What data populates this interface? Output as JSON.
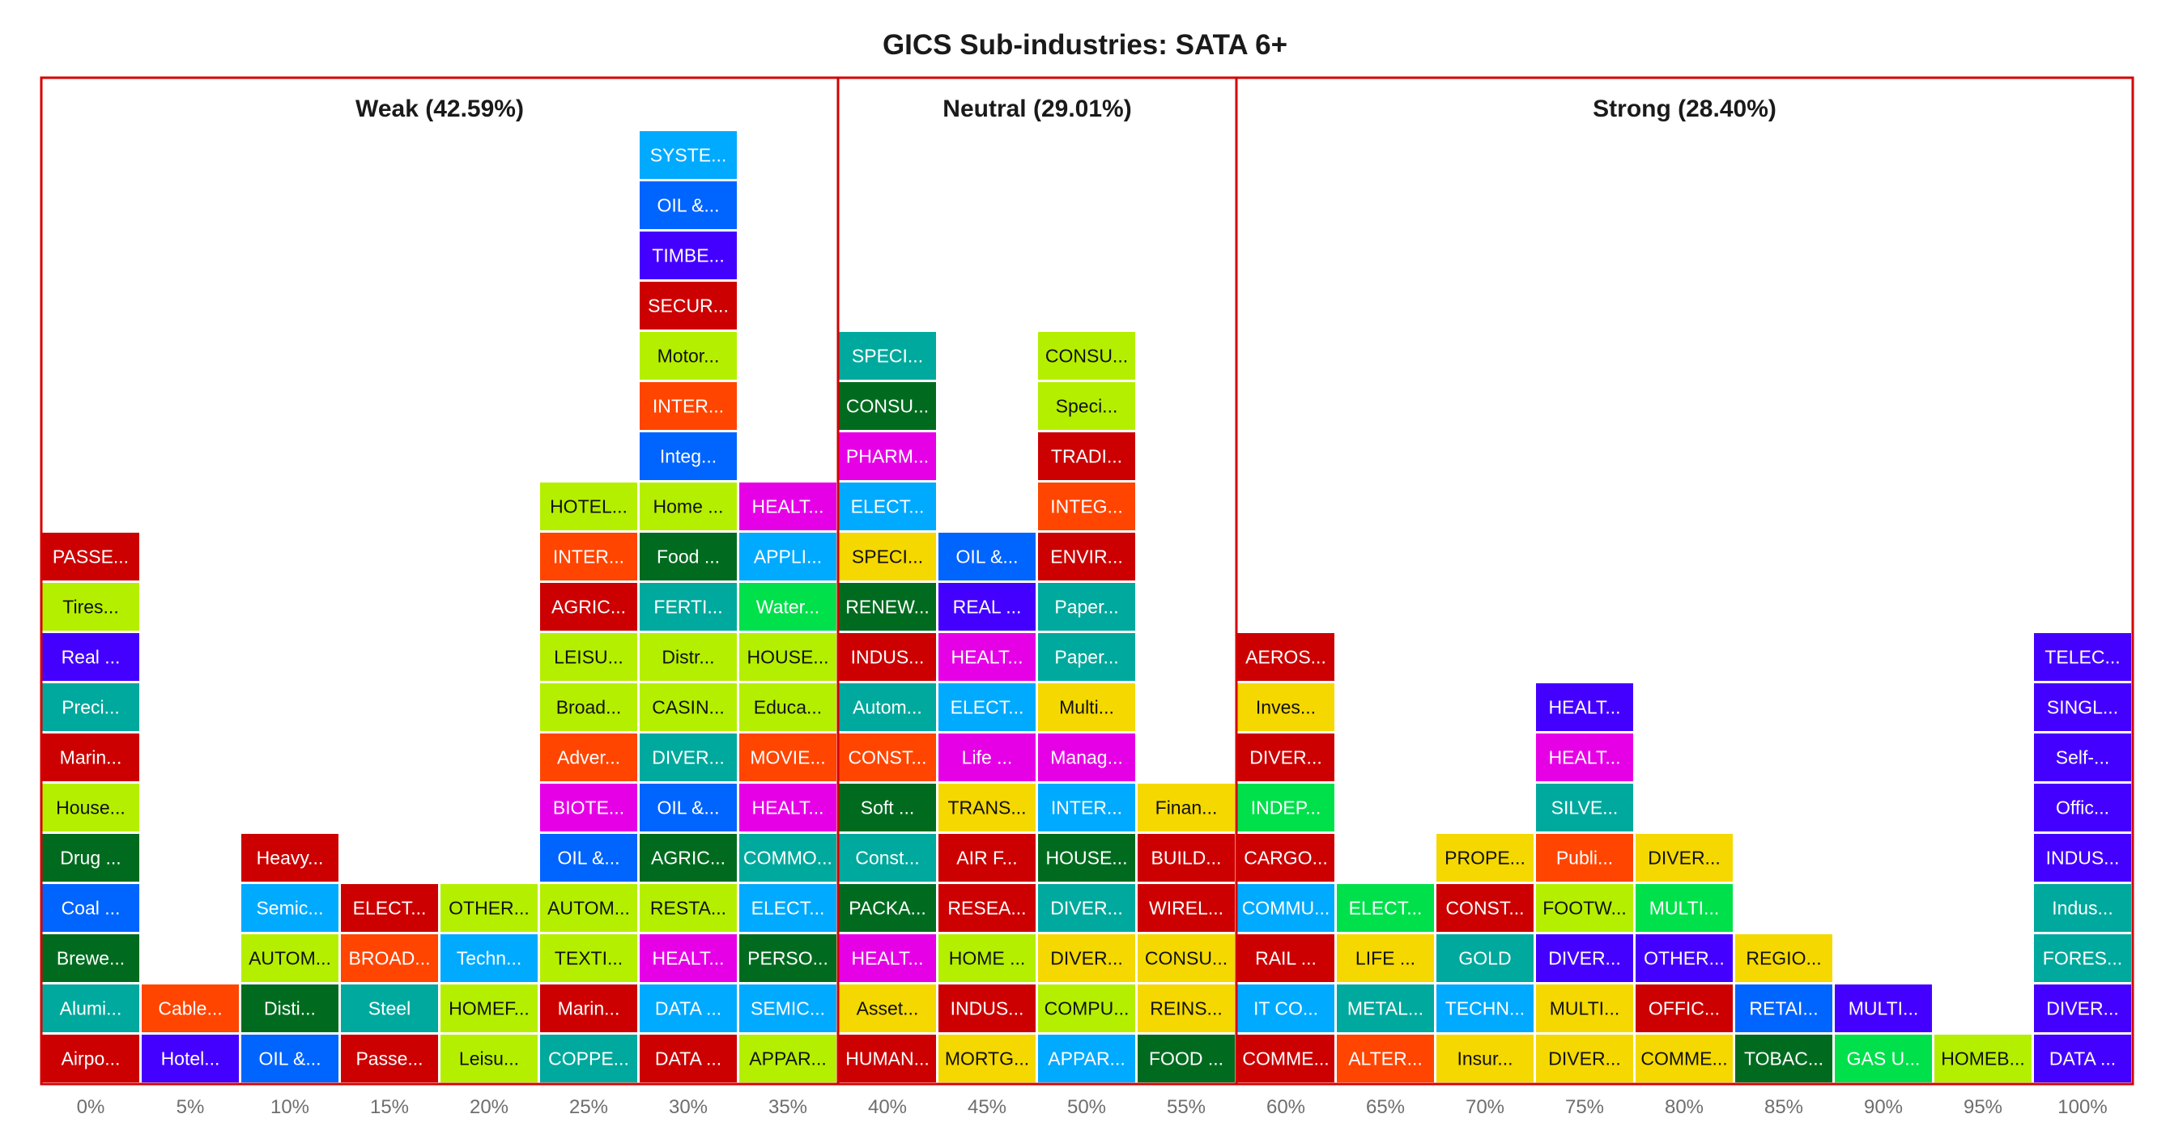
{
  "chart_data": {
    "type": "table",
    "title": "GICS Sub-industries: SATA 6+",
    "ticks": [
      "0%",
      "5%",
      "10%",
      "15%",
      "20%",
      "25%",
      "30%",
      "35%",
      "40%",
      "45%",
      "50%",
      "55%",
      "60%",
      "65%",
      "70%",
      "75%",
      "80%",
      "85%",
      "90%",
      "95%",
      "100%"
    ],
    "sections": [
      {
        "label": "Weak (42.59%)",
        "from": 0,
        "to": 7
      },
      {
        "label": "Neutral (29.01%)",
        "from": 8,
        "to": 11
      },
      {
        "label": "Strong (28.40%)",
        "from": 12,
        "to": 20
      }
    ],
    "columns": [
      [
        [
          "Airpo...",
          "#cc0000"
        ],
        [
          "Alumi...",
          "#00a99d"
        ],
        [
          "Brewe...",
          "#006b1f"
        ],
        [
          "Coal ...",
          "#0064ff"
        ],
        [
          "Drug ...",
          "#006b1f"
        ],
        [
          "House...",
          "#b5ef00"
        ],
        [
          "Marin...",
          "#cc0000"
        ],
        [
          "Preci...",
          "#00a99d"
        ],
        [
          "Real ...",
          "#4400ff"
        ],
        [
          "Tires...",
          "#b5ef00"
        ],
        [
          "PASSE...",
          "#cc0000"
        ]
      ],
      [
        [
          "Hotel...",
          "#4400ff"
        ],
        [
          "Cable...",
          "#ff4500"
        ]
      ],
      [
        [
          "OIL &...",
          "#0064ff"
        ],
        [
          "Disti...",
          "#006b1f"
        ],
        [
          "AUTOM...",
          "#b5ef00"
        ],
        [
          "Semic...",
          "#00aaff"
        ],
        [
          "Heavy...",
          "#cc0000"
        ]
      ],
      [
        [
          "Passe...",
          "#cc0000"
        ],
        [
          "Steel",
          "#00a99d"
        ],
        [
          "BROAD...",
          "#ff4500"
        ],
        [
          "ELECT...",
          "#cc0000"
        ]
      ],
      [
        [
          "Leisu...",
          "#b5ef00"
        ],
        [
          "HOMEF...",
          "#b5ef00"
        ],
        [
          "Techn...",
          "#00aaff"
        ],
        [
          "OTHER...",
          "#b5ef00"
        ]
      ],
      [
        [
          "COPPE...",
          "#00a99d"
        ],
        [
          "Marin...",
          "#cc0000"
        ],
        [
          "TEXTI...",
          "#b5ef00"
        ],
        [
          "AUTOM...",
          "#b5ef00"
        ],
        [
          "OIL &...",
          "#0064ff"
        ],
        [
          "BIOTE...",
          "#e600e6"
        ],
        [
          "Adver...",
          "#ff4500"
        ],
        [
          "Broad...",
          "#b5ef00"
        ],
        [
          "LEISU...",
          "#b5ef00"
        ],
        [
          "AGRIC...",
          "#cc0000"
        ],
        [
          "INTER...",
          "#ff4500"
        ],
        [
          "HOTEL...",
          "#b5ef00"
        ]
      ],
      [
        [
          "DATA ...",
          "#cc0000"
        ],
        [
          "DATA ...",
          "#00aaff"
        ],
        [
          "HEALT...",
          "#e600e6"
        ],
        [
          "RESTA...",
          "#b5ef00"
        ],
        [
          "AGRIC...",
          "#006b1f"
        ],
        [
          "OIL &...",
          "#0064ff"
        ],
        [
          "DIVER...",
          "#00a99d"
        ],
        [
          "CASIN...",
          "#b5ef00"
        ],
        [
          "Distr...",
          "#b5ef00"
        ],
        [
          "FERTI...",
          "#00a99d"
        ],
        [
          "Food ...",
          "#006b1f"
        ],
        [
          "Home ...",
          "#b5ef00"
        ],
        [
          "Integ...",
          "#0064ff"
        ],
        [
          "INTER...",
          "#ff4500"
        ],
        [
          "Motor...",
          "#b5ef00"
        ],
        [
          "SECUR...",
          "#cc0000"
        ],
        [
          "TIMBE...",
          "#4400ff"
        ],
        [
          "OIL &...",
          "#0064ff"
        ],
        [
          "SYSTE...",
          "#00aaff"
        ]
      ],
      [
        [
          "APPAR...",
          "#b5ef00"
        ],
        [
          "SEMIC...",
          "#00aaff"
        ],
        [
          "PERSO...",
          "#006b1f"
        ],
        [
          "ELECT...",
          "#00aaff"
        ],
        [
          "COMMO...",
          "#00a99d"
        ],
        [
          "HEALT...",
          "#e600e6"
        ],
        [
          "MOVIE...",
          "#ff4500"
        ],
        [
          "Educa...",
          "#b5ef00"
        ],
        [
          "HOUSE...",
          "#b5ef00"
        ],
        [
          "Water...",
          "#00e04b"
        ],
        [
          "APPLI...",
          "#00aaff"
        ],
        [
          "HEALT...",
          "#e600e6"
        ]
      ],
      [
        [
          "HUMAN...",
          "#cc0000"
        ],
        [
          "Asset...",
          "#f5d800"
        ],
        [
          "HEALT...",
          "#e600e6"
        ],
        [
          "PACKA...",
          "#006b1f"
        ],
        [
          "Const...",
          "#00a99d"
        ],
        [
          "Soft ...",
          "#006b1f"
        ],
        [
          "CONST...",
          "#ff4500"
        ],
        [
          "Autom...",
          "#00a99d"
        ],
        [
          "INDUS...",
          "#cc0000"
        ],
        [
          "RENEW...",
          "#006b1f"
        ],
        [
          "SPECI...",
          "#f5d800"
        ],
        [
          "ELECT...",
          "#00aaff"
        ],
        [
          "PHARM...",
          "#e600e6"
        ],
        [
          "CONSU...",
          "#006b1f"
        ],
        [
          "SPECI...",
          "#00a99d"
        ]
      ],
      [
        [
          "MORTG...",
          "#f5d800"
        ],
        [
          "INDUS...",
          "#cc0000"
        ],
        [
          "HOME ...",
          "#b5ef00"
        ],
        [
          "RESEA...",
          "#cc0000"
        ],
        [
          "AIR F...",
          "#cc0000"
        ],
        [
          "TRANS...",
          "#f5d800"
        ],
        [
          "Life ...",
          "#e600e6"
        ],
        [
          "ELECT...",
          "#00aaff"
        ],
        [
          "HEALT...",
          "#e600e6"
        ],
        [
          "REAL ...",
          "#4400ff"
        ],
        [
          "OIL &...",
          "#0064ff"
        ]
      ],
      [
        [
          "APPAR...",
          "#00aaff"
        ],
        [
          "COMPU...",
          "#b5ef00"
        ],
        [
          "DIVER...",
          "#f5d800"
        ],
        [
          "DIVER...",
          "#00a99d"
        ],
        [
          "HOUSE...",
          "#006b1f"
        ],
        [
          "INTER...",
          "#00aaff"
        ],
        [
          "Manag...",
          "#e600e6"
        ],
        [
          "Multi...",
          "#f5d800"
        ],
        [
          "Paper...",
          "#00a99d"
        ],
        [
          "Paper...",
          "#00a99d"
        ],
        [
          "ENVIR...",
          "#cc0000"
        ],
        [
          "INTEG...",
          "#ff4500"
        ],
        [
          "TRADI...",
          "#cc0000"
        ],
        [
          "Speci...",
          "#b5ef00"
        ],
        [
          "CONSU...",
          "#b5ef00"
        ]
      ],
      [
        [
          "FOOD ...",
          "#006b1f"
        ],
        [
          "REINS...",
          "#f5d800"
        ],
        [
          "CONSU...",
          "#f5d800"
        ],
        [
          "WIREL...",
          "#cc0000"
        ],
        [
          "BUILD...",
          "#cc0000"
        ],
        [
          "Finan...",
          "#f5d800"
        ]
      ],
      [
        [
          "COMME...",
          "#cc0000"
        ],
        [
          "IT CO...",
          "#00aaff"
        ],
        [
          "RAIL ...",
          "#cc0000"
        ],
        [
          "COMMU...",
          "#00aaff"
        ],
        [
          "CARGO...",
          "#cc0000"
        ],
        [
          "INDEP...",
          "#00e04b"
        ],
        [
          "DIVER...",
          "#cc0000"
        ],
        [
          "Inves...",
          "#f5d800"
        ],
        [
          "AEROS...",
          "#cc0000"
        ]
      ],
      [
        [
          "ALTER...",
          "#ff4500"
        ],
        [
          "METAL...",
          "#00a99d"
        ],
        [
          "LIFE ...",
          "#f5d800"
        ],
        [
          "ELECT...",
          "#00e04b"
        ]
      ],
      [
        [
          "Insur...",
          "#f5d800"
        ],
        [
          "TECHN...",
          "#00aaff"
        ],
        [
          "GOLD",
          "#00a99d"
        ],
        [
          "CONST...",
          "#cc0000"
        ],
        [
          "PROPE...",
          "#f5d800"
        ]
      ],
      [
        [
          "DIVER...",
          "#f5d800"
        ],
        [
          "MULTI...",
          "#f5d800"
        ],
        [
          "DIVER...",
          "#4400ff"
        ],
        [
          "FOOTW...",
          "#b5ef00"
        ],
        [
          "Publi...",
          "#ff4500"
        ],
        [
          "SILVE...",
          "#00a99d"
        ],
        [
          "HEALT...",
          "#e600e6"
        ],
        [
          "HEALT...",
          "#4400ff"
        ]
      ],
      [
        [
          "COMME...",
          "#f5d800"
        ],
        [
          "OFFIC...",
          "#cc0000"
        ],
        [
          "OTHER...",
          "#4400ff"
        ],
        [
          "MULTI...",
          "#00e04b"
        ],
        [
          "DIVER...",
          "#f5d800"
        ]
      ],
      [
        [
          "TOBAC...",
          "#006b1f"
        ],
        [
          "RETAI...",
          "#0064ff"
        ],
        [
          "REGIO...",
          "#f5d800"
        ]
      ],
      [
        [
          "GAS U...",
          "#00e04b"
        ],
        [
          "MULTI...",
          "#4400ff"
        ]
      ],
      [
        [
          "HOMEB...",
          "#b5ef00"
        ]
      ],
      [
        [
          "DATA ...",
          "#4400ff"
        ],
        [
          "DIVER...",
          "#4400ff"
        ],
        [
          "FORES...",
          "#00a99d"
        ],
        [
          "Indus...",
          "#00a99d"
        ],
        [
          "INDUS...",
          "#4400ff"
        ],
        [
          "Offic...",
          "#4400ff"
        ],
        [
          "Self-...",
          "#4400ff"
        ],
        [
          "SINGL...",
          "#4400ff"
        ],
        [
          "TELEC...",
          "#4400ff"
        ]
      ]
    ]
  }
}
